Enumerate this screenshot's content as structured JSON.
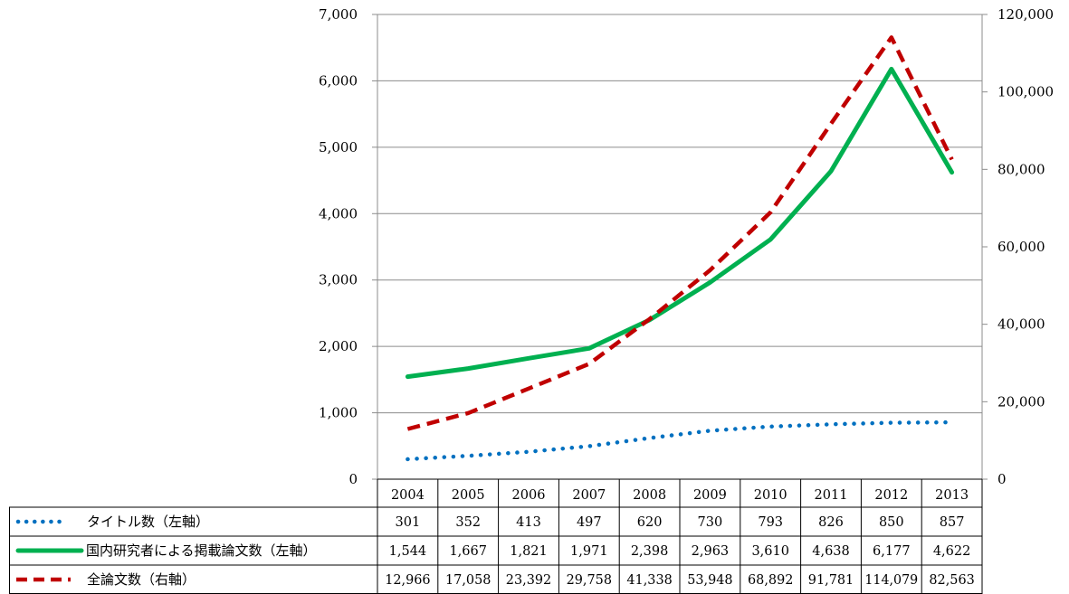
{
  "chart_data": {
    "type": "line",
    "categories": [
      "2004",
      "2005",
      "2006",
      "2007",
      "2008",
      "2009",
      "2010",
      "2011",
      "2012",
      "2013"
    ],
    "series": [
      {
        "name": "タイトル数（左軸）",
        "axis": "left",
        "values": [
          301,
          352,
          413,
          497,
          620,
          730,
          793,
          826,
          850,
          857
        ],
        "value_labels": [
          "301",
          "352",
          "413",
          "497",
          "620",
          "730",
          "793",
          "826",
          "850",
          "857"
        ],
        "color": "#0070c0",
        "style": "dotted"
      },
      {
        "name": "国内研究者による掲載論文数（左軸）",
        "axis": "left",
        "values": [
          1544,
          1667,
          1821,
          1971,
          2398,
          2963,
          3610,
          4638,
          6177,
          4622
        ],
        "value_labels": [
          "1,544",
          "1,667",
          "1,821",
          "1,971",
          "2,398",
          "2,963",
          "3,610",
          "4,638",
          "6,177",
          "4,622"
        ],
        "color": "#00b050",
        "style": "solid"
      },
      {
        "name": "全論文数（右軸）",
        "axis": "right",
        "values": [
          12966,
          17058,
          23392,
          29758,
          41338,
          53948,
          68892,
          91781,
          114079,
          82563
        ],
        "value_labels": [
          "12,966",
          "17,058",
          "23,392",
          "29,758",
          "41,338",
          "53,948",
          "68,892",
          "91,781",
          "114,079",
          "82,563"
        ],
        "color": "#c00000",
        "style": "dashed"
      }
    ],
    "left_axis": {
      "ylim": [
        0,
        7000
      ],
      "ticks": [
        0,
        1000,
        2000,
        3000,
        4000,
        5000,
        6000,
        7000
      ],
      "tick_labels": [
        "0",
        "1,000",
        "2,000",
        "3,000",
        "4,000",
        "5,000",
        "6,000",
        "7,000"
      ]
    },
    "right_axis": {
      "ylim": [
        0,
        120000
      ],
      "ticks": [
        0,
        20000,
        40000,
        60000,
        80000,
        100000,
        120000
      ],
      "tick_labels": [
        "0",
        "20,000",
        "40,000",
        "60,000",
        "80,000",
        "100,000",
        "120,000"
      ]
    },
    "grid": true,
    "data_table": true
  }
}
